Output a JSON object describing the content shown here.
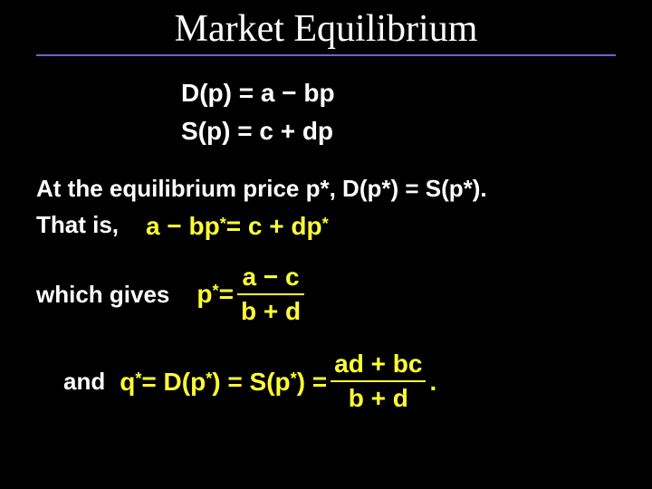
{
  "colors": {
    "background": "#000000",
    "text": "#ffffff",
    "accent": "#ffff33",
    "underline": "#6666cc"
  },
  "title": "Market Equilibrium",
  "demand_eq": "D(p) = a − bp",
  "supply_eq": "S(p) = c + dp",
  "line1": "At the equilibrium price p*, D(p*) = S(p*).",
  "line2_label": "That is,",
  "eq2_lhs": "a − bp",
  "eq2_star1": "*",
  "eq2_mid": " = c + dp",
  "eq2_star2": "*",
  "line3_label": "which gives",
  "eq3_p": "p",
  "eq3_star": "*",
  "eq3_eq": " = ",
  "eq3_num": "a − c",
  "eq3_den": "b + d",
  "line4_label": "and",
  "eq4_q": "q",
  "eq4_star": "*",
  "eq4_mid1": " = D(p",
  "eq4_star2": "*",
  "eq4_mid2": ") = S(p",
  "eq4_star3": "*",
  "eq4_mid3": ") = ",
  "eq4_num": "ad + bc",
  "eq4_den": "b + d",
  "eq4_dot": "."
}
